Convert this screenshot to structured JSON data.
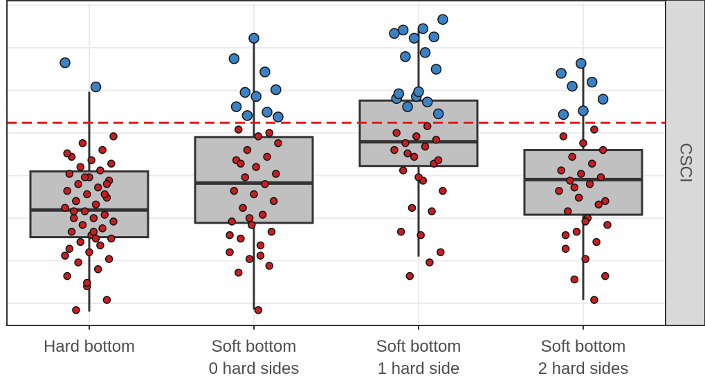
{
  "chart_data": {
    "type": "box",
    "categories": [
      "Hard bottom",
      "Soft bottom\n0 hard sides",
      "Soft bottom\n1 hard side",
      "Soft bottom\n2 hard sides"
    ],
    "boxes": [
      {
        "min": 0.226,
        "q1": 0.444,
        "median": 0.524,
        "q3": 0.637,
        "max": 0.871
      },
      {
        "min": 0.232,
        "q1": 0.486,
        "median": 0.603,
        "q3": 0.738,
        "max": 1.028
      },
      {
        "min": 0.387,
        "q1": 0.653,
        "median": 0.724,
        "q3": 0.845,
        "max": 1.052
      },
      {
        "min": 0.26,
        "q1": 0.51,
        "median": 0.613,
        "q3": 0.7,
        "max": 0.952
      }
    ],
    "points": [
      [
        0.956,
        0.885,
        0.23,
        0.26,
        0.3,
        0.33,
        0.35,
        0.37,
        0.38,
        0.4,
        0.41,
        0.42,
        0.43,
        0.44,
        0.45,
        0.46,
        0.47,
        0.48,
        0.49,
        0.5,
        0.5,
        0.51,
        0.52,
        0.53,
        0.54,
        0.55,
        0.56,
        0.57,
        0.58,
        0.59,
        0.6,
        0.61,
        0.62,
        0.63,
        0.64,
        0.65,
        0.66,
        0.67,
        0.68,
        0.7,
        0.72,
        0.74,
        0.46,
        0.52,
        0.57,
        0.62,
        0.39,
        0.44,
        0.55,
        0.6,
        0.31,
        0.69
      ],
      [
        1.028,
        0.968,
        0.929,
        0.869,
        0.877,
        0.857,
        0.827,
        0.811,
        0.801,
        0.797,
        0.23,
        0.34,
        0.36,
        0.38,
        0.4,
        0.42,
        0.44,
        0.46,
        0.48,
        0.49,
        0.51,
        0.53,
        0.55,
        0.57,
        0.58,
        0.6,
        0.62,
        0.63,
        0.65,
        0.67,
        0.68,
        0.7,
        0.72,
        0.74,
        0.76,
        0.75,
        0.5,
        0.45,
        0.39,
        0.66
      ],
      [
        1.083,
        1.056,
        1.052,
        1.032,
        1.028,
        1.042,
        0.986,
        0.974,
        0.937,
        0.857,
        0.851,
        0.841,
        0.827,
        0.806,
        0.871,
        0.865,
        0.37,
        0.33,
        0.4,
        0.45,
        0.46,
        0.52,
        0.53,
        0.58,
        0.61,
        0.64,
        0.66,
        0.68,
        0.7,
        0.71,
        0.72,
        0.73,
        0.74,
        0.75,
        0.77,
        0.69,
        0.67,
        0.62
      ],
      [
        0.954,
        0.925,
        0.899,
        0.887,
        0.849,
        0.815,
        0.804,
        0.26,
        0.32,
        0.33,
        0.38,
        0.41,
        0.43,
        0.46,
        0.48,
        0.5,
        0.52,
        0.54,
        0.56,
        0.58,
        0.6,
        0.61,
        0.62,
        0.63,
        0.64,
        0.66,
        0.68,
        0.7,
        0.72,
        0.74,
        0.76,
        0.59,
        0.55,
        0.49,
        0.45
      ]
    ],
    "threshold": 0.78,
    "threshold_color": "#e41a1c",
    "below_color": "#c81e22",
    "above_color": "#3b82c4",
    "box_color": "#c0c0c0",
    "facet_label": "CSCI",
    "ylim": [
      0.185,
      1.13
    ],
    "yticks": [
      0.25,
      0.375,
      0.5,
      0.625,
      0.75,
      0.875,
      1,
      1.125
    ],
    "grid": true
  }
}
